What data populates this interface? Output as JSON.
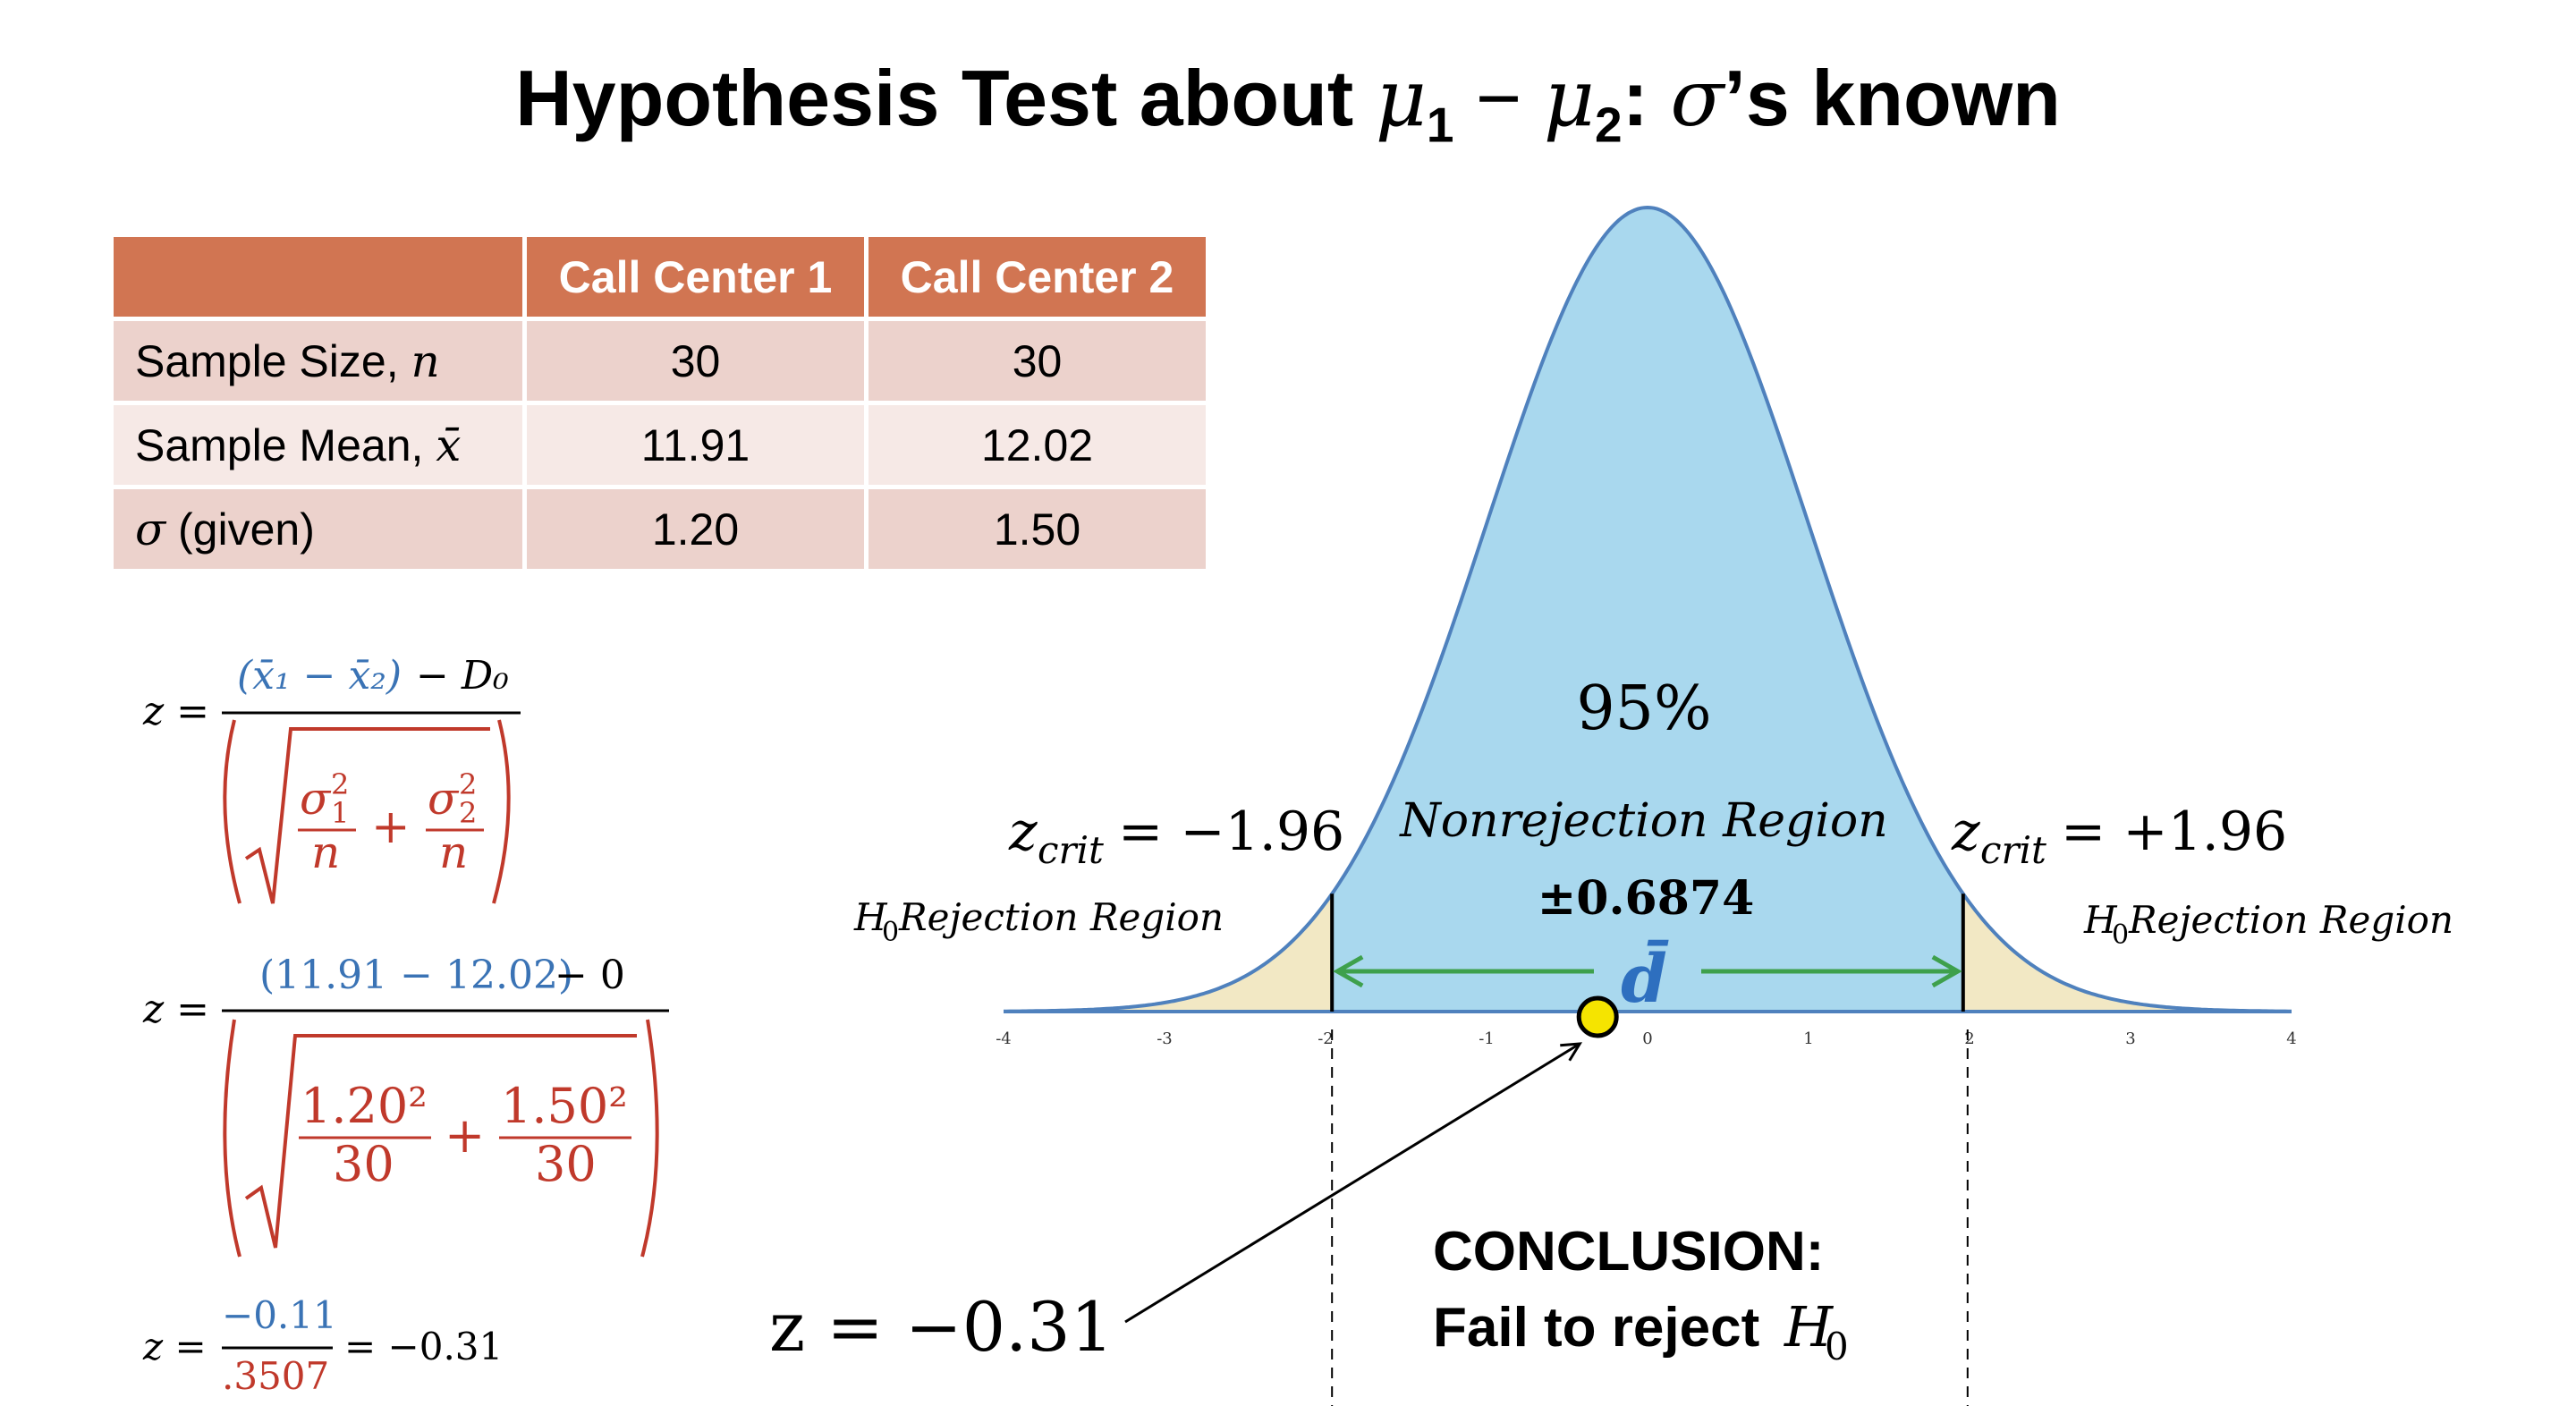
{
  "title": {
    "prefix": "Hypothesis Test about ",
    "mu1": "μ",
    "sub1": "1",
    "minus": " − ",
    "mu2": "μ",
    "sub2": "2",
    "colon": ": ",
    "sigma": "σ",
    "suffix": "’s known"
  },
  "table": {
    "headers": [
      "",
      "Call Center 1",
      "Call Center 2"
    ],
    "rows": [
      {
        "label": "Sample Size, ",
        "symbol": "n",
        "values": [
          "30",
          "30"
        ]
      },
      {
        "label": "Sample Mean, ",
        "symbol": "x̄",
        "values": [
          "11.91",
          "12.02"
        ]
      },
      {
        "symbol": "σ",
        "label": " (given)",
        "values": [
          "1.20",
          "1.50"
        ]
      }
    ]
  },
  "formulas": {
    "f1": {
      "lhs": "z =",
      "num_blue": "(x̄₁ − x̄₂)",
      "num_black": " − D₀",
      "sigma1": "σ",
      "sigma1_sup": "2",
      "sigma1_sub": "1",
      "sigma2": "σ",
      "sigma2_sup": "2",
      "sigma2_sub": "2",
      "n1": "n",
      "n2": "n",
      "plus": "+"
    },
    "f2": {
      "lhs": "z =",
      "num_blue": "(11.91 − 12.02)",
      "num_black": " − 0",
      "t1": "1.20²",
      "t2": "1.50²",
      "d1": "30",
      "d2": "30",
      "plus": "+"
    },
    "f3": {
      "lhs": "z =",
      "num": "−0.11",
      "den": ".3507",
      "rhs": "= −0.31"
    }
  },
  "distribution": {
    "mean": 0,
    "sd": 1,
    "x_range": [
      -4,
      4
    ],
    "ticks": [
      "-4",
      "-3",
      "-2",
      "-1",
      "0",
      "1",
      "2",
      "3",
      "4"
    ],
    "z_crit_low": -1.96,
    "z_crit_high": 1.96,
    "z_stat": -0.31,
    "center_fill": "#a9d8ee",
    "tail_fill": "#f2e8c4",
    "curve_color": "#4f81bd",
    "arrow_color": "#3ea04c",
    "center_pct": "95%",
    "center_label": "Nonrejection Region",
    "pm_label": "±0.6874",
    "dbar_label": "d̄",
    "zcrit_left": {
      "z": "z",
      "sub": "crit",
      "rest": " = −1.96"
    },
    "zcrit_right": {
      "z": "z",
      "sub": "crit",
      "rest": " = +1.96"
    },
    "rejection_left": {
      "h": "H",
      "sub": "0",
      "rest": " Rejection Region"
    },
    "rejection_right": {
      "h": "H",
      "sub": "0",
      "rest": " Rejection Region"
    },
    "z_result": "z = −0.31"
  },
  "conclusion": {
    "heading": "CONCLUSION:",
    "text": "Fail to reject ",
    "h": "H",
    "sub": "0"
  }
}
